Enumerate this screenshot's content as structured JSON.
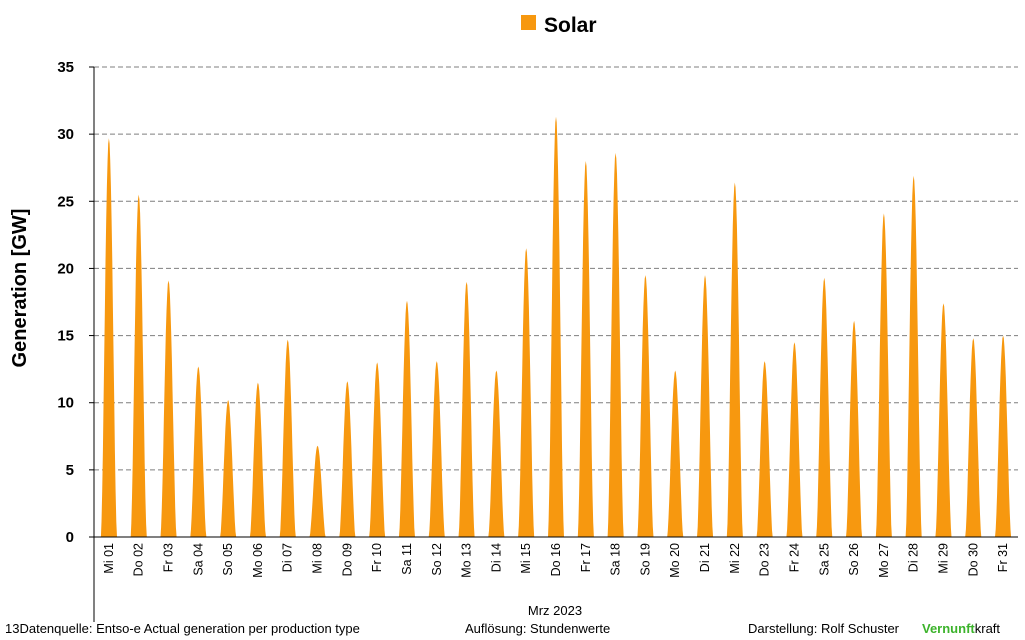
{
  "chart_data": {
    "type": "area",
    "title": "",
    "xlabel": "Mrz 2023",
    "ylabel": "Generation  [GW]",
    "ylim": [
      0,
      35
    ],
    "yticks": [
      0,
      5,
      10,
      15,
      20,
      25,
      30,
      35
    ],
    "grid": true,
    "legend_position": "top-center",
    "series": [
      {
        "name": "Solar",
        "color": "#f7980f",
        "daily_peaks": [
          29.7,
          25.5,
          19.1,
          12.7,
          10.2,
          11.5,
          14.7,
          6.8,
          11.6,
          13.0,
          17.6,
          13.1,
          19.0,
          12.4,
          21.5,
          31.3,
          28.0,
          28.6,
          19.5,
          12.4,
          19.5,
          26.4,
          13.1,
          14.5,
          19.3,
          16.1,
          24.1,
          26.9,
          17.4,
          14.8,
          15.0
        ]
      }
    ],
    "categories": [
      "Mi 01",
      "Do 02",
      "Fr 03",
      "Sa 04",
      "So 05",
      "Mo 06",
      "Di 07",
      "Mi 08",
      "Do 09",
      "Fr 10",
      "Sa 11",
      "So 12",
      "Mo 13",
      "Di 14",
      "Mi 15",
      "Do 16",
      "Fr 17",
      "Sa 18",
      "So 19",
      "Mo 20",
      "Di 21",
      "Mi 22",
      "Do 23",
      "Fr 24",
      "Sa 25",
      "So 26",
      "Mo 27",
      "Di 28",
      "Mi 29",
      "Do 30",
      "Fr 31"
    ]
  },
  "footer": {
    "source": "13Datenquelle: Entso-e  Actual generation per production type",
    "resolution": "Auflösung: Stundenwerte",
    "author": "Darstellung:  Rolf Schuster",
    "brand_green": "Vernunft",
    "brand_black": "kraft"
  },
  "colors": {
    "solar": "#f7980f",
    "grid": "#7f7f7f",
    "brand": "#3cb32b"
  }
}
